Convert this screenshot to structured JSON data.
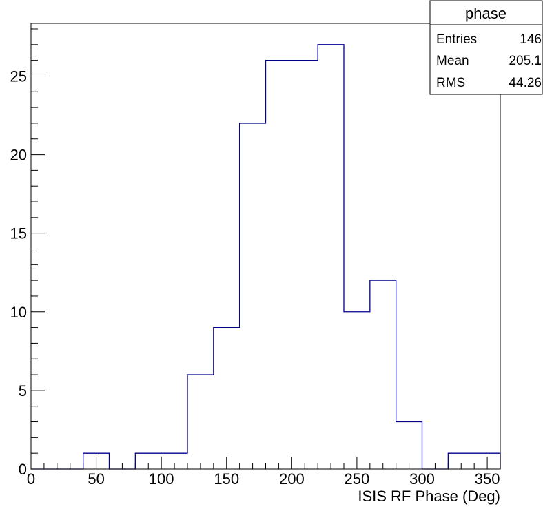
{
  "chart_data": {
    "type": "bar",
    "histogram": true,
    "title": "",
    "xlabel": "ISIS RF Phase (Deg)",
    "ylabel": "",
    "bin_edges": [
      0,
      20,
      40,
      60,
      80,
      100,
      120,
      140,
      160,
      180,
      200,
      220,
      240,
      260,
      280,
      300,
      320,
      340,
      360
    ],
    "values": [
      0,
      0,
      1,
      0,
      1,
      1,
      6,
      9,
      22,
      26,
      26,
      27,
      10,
      12,
      3,
      0,
      1,
      1
    ],
    "xlim": [
      0,
      360
    ],
    "ylim": [
      0,
      28.35
    ],
    "xticks": [
      0,
      50,
      100,
      150,
      200,
      250,
      300,
      350
    ],
    "yticks": [
      0,
      5,
      10,
      15,
      20,
      25
    ],
    "line_color": "#00008b",
    "grid": false,
    "stats_box": {
      "name": "phase",
      "rows": [
        {
          "label": "Entries",
          "value": "146"
        },
        {
          "label": "Mean",
          "value": "205.1"
        },
        {
          "label": "RMS",
          "value": "44.26"
        }
      ]
    }
  }
}
